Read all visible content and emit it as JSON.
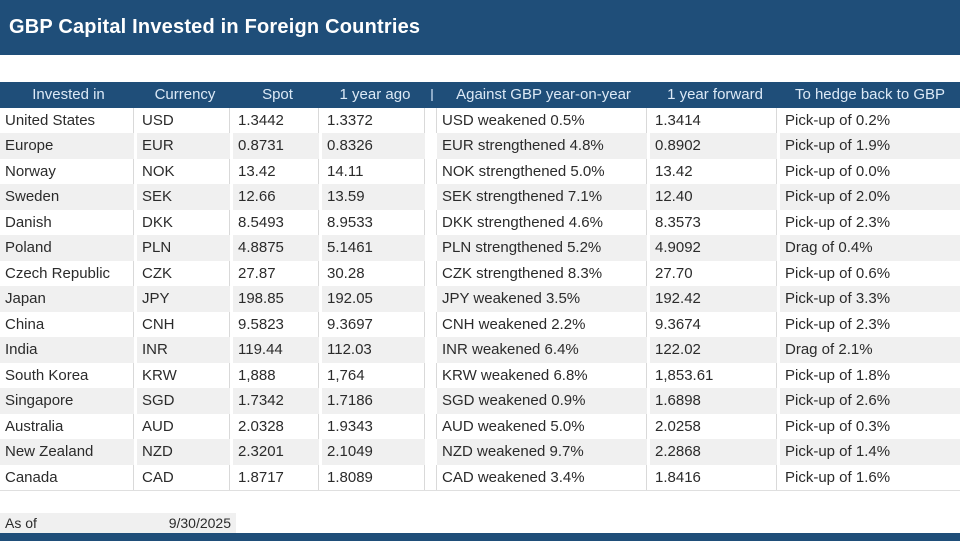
{
  "banner": {
    "title": "GBP Capital Invested in Foreign Countries"
  },
  "colors": {
    "navy": "#1F4E79",
    "header_text": "#DCE9F6",
    "row_stripe": "#F0F0F0",
    "body_text": "#2b2b2b"
  },
  "table": {
    "columns": [
      "Invested in",
      "Currency",
      "Spot",
      "1 year ago",
      "Against GBP year-on-year",
      "1 year forward",
      "To hedge back to GBP"
    ],
    "rows": [
      {
        "invested_in": "United States",
        "currency": "USD",
        "spot": "1.3442",
        "year_ago": "1.3372",
        "against_gbp": "USD weakened 0.5%",
        "year_forward": "1.3414",
        "hedge": "Pick-up of 0.2%"
      },
      {
        "invested_in": "Europe",
        "currency": "EUR",
        "spot": "0.8731",
        "year_ago": "0.8326",
        "against_gbp": "EUR strengthened 4.8%",
        "year_forward": "0.8902",
        "hedge": "Pick-up of 1.9%"
      },
      {
        "invested_in": "Norway",
        "currency": "NOK",
        "spot": "13.42",
        "year_ago": "14.11",
        "against_gbp": "NOK strengthened 5.0%",
        "year_forward": "13.42",
        "hedge": "Pick-up of 0.0%"
      },
      {
        "invested_in": "Sweden",
        "currency": "SEK",
        "spot": "12.66",
        "year_ago": "13.59",
        "against_gbp": "SEK strengthened 7.1%",
        "year_forward": "12.40",
        "hedge": "Pick-up of 2.0%"
      },
      {
        "invested_in": "Danish",
        "currency": "DKK",
        "spot": "8.5493",
        "year_ago": "8.9533",
        "against_gbp": "DKK strengthened 4.6%",
        "year_forward": "8.3573",
        "hedge": "Pick-up of 2.3%"
      },
      {
        "invested_in": "Poland",
        "currency": "PLN",
        "spot": "4.8875",
        "year_ago": "5.1461",
        "against_gbp": "PLN strengthened 5.2%",
        "year_forward": "4.9092",
        "hedge": "Drag of 0.4%"
      },
      {
        "invested_in": "Czech Republic",
        "currency": "CZK",
        "spot": "27.87",
        "year_ago": "30.28",
        "against_gbp": "CZK strengthened 8.3%",
        "year_forward": "27.70",
        "hedge": "Pick-up of 0.6%"
      },
      {
        "invested_in": "Japan",
        "currency": "JPY",
        "spot": "198.85",
        "year_ago": "192.05",
        "against_gbp": "JPY weakened 3.5%",
        "year_forward": "192.42",
        "hedge": "Pick-up of 3.3%"
      },
      {
        "invested_in": "China",
        "currency": "CNH",
        "spot": "9.5823",
        "year_ago": "9.3697",
        "against_gbp": "CNH weakened 2.2%",
        "year_forward": "9.3674",
        "hedge": "Pick-up of 2.3%"
      },
      {
        "invested_in": "India",
        "currency": "INR",
        "spot": "119.44",
        "year_ago": "112.03",
        "against_gbp": "INR weakened 6.4%",
        "year_forward": "122.02",
        "hedge": "Drag of 2.1%"
      },
      {
        "invested_in": "South Korea",
        "currency": "KRW",
        "spot": "1,888",
        "year_ago": "1,764",
        "against_gbp": "KRW weakened 6.8%",
        "year_forward": "1,853.61",
        "hedge": "Pick-up of 1.8%"
      },
      {
        "invested_in": "Singapore",
        "currency": "SGD",
        "spot": "1.7342",
        "year_ago": "1.7186",
        "against_gbp": "SGD weakened 0.9%",
        "year_forward": "1.6898",
        "hedge": "Pick-up of 2.6%"
      },
      {
        "invested_in": "Australia",
        "currency": "AUD",
        "spot": "2.0328",
        "year_ago": "1.9343",
        "against_gbp": "AUD weakened 5.0%",
        "year_forward": "2.0258",
        "hedge": "Pick-up of 0.3%"
      },
      {
        "invested_in": "New Zealand",
        "currency": "NZD",
        "spot": "2.3201",
        "year_ago": "2.1049",
        "against_gbp": "NZD weakened 9.7%",
        "year_forward": "2.2868",
        "hedge": "Pick-up of 1.4%"
      },
      {
        "invested_in": "Canada",
        "currency": "CAD",
        "spot": "1.8717",
        "year_ago": "1.8089",
        "against_gbp": "CAD weakened 3.4%",
        "year_forward": "1.8416",
        "hedge": "Pick-up of 1.6%"
      }
    ]
  },
  "footer": {
    "as_of_label": "As of",
    "as_of_date": "9/30/2025"
  }
}
